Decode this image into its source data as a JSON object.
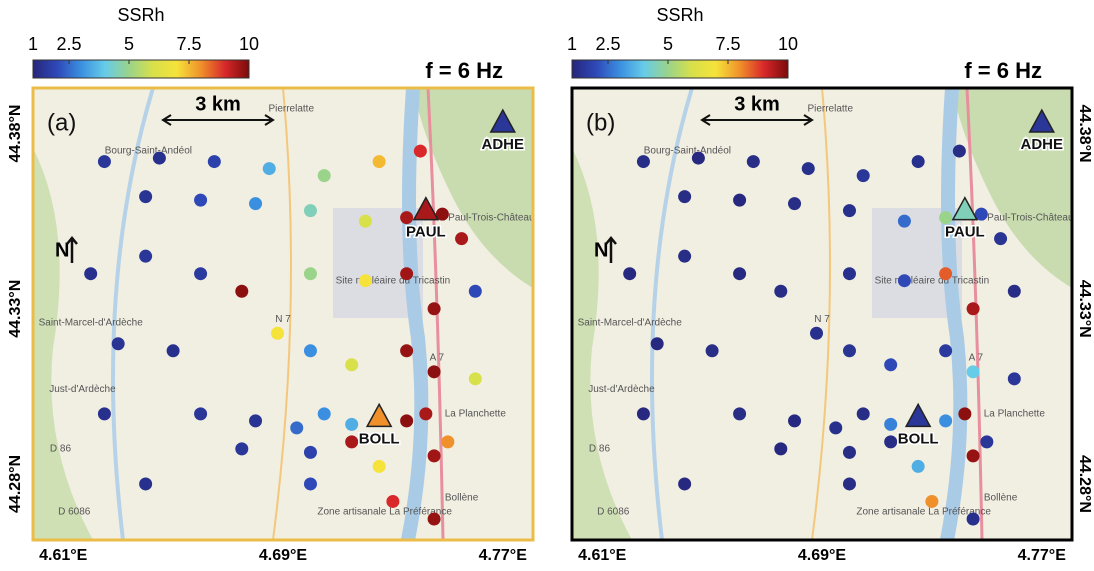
{
  "colorbar": {
    "label": "SSRh",
    "range": [
      1,
      10
    ],
    "ticks": [
      1,
      2.5,
      5,
      7.5,
      10
    ],
    "colormap": [
      "#26267a",
      "#2e48b8",
      "#3b8fe0",
      "#66cce8",
      "#9ad38a",
      "#d8e04a",
      "#f5e23a",
      "#f0902a",
      "#d8282a",
      "#7a0a0a"
    ]
  },
  "xlim": [
    4.599,
    4.781
  ],
  "ylim": [
    44.264,
    44.393
  ],
  "xticks": [
    {
      "value": 4.61,
      "label": "4.61°E"
    },
    {
      "value": 4.69,
      "label": "4.69°E"
    },
    {
      "value": 4.77,
      "label": "4.77°E"
    }
  ],
  "yticks": [
    {
      "value": 44.28,
      "label": "44.28°N"
    },
    {
      "value": 44.33,
      "label": "44.33°N"
    },
    {
      "value": 44.38,
      "label": "44.38°N"
    }
  ],
  "scale_bar": "3 km",
  "north": "N",
  "map_labels": [
    {
      "text": "Pierrelatte",
      "lon": 4.693,
      "lat": 44.387
    },
    {
      "text": "Bourg-Saint-Andéol",
      "lon": 4.641,
      "lat": 44.375
    },
    {
      "text": "Saint-Paul-Trois-Châteaux",
      "lon": 4.762,
      "lat": 44.356
    },
    {
      "text": "Site nucléaire du Tricastin",
      "lon": 4.73,
      "lat": 44.338
    },
    {
      "text": "Saint-Marcel-d'Ardèche",
      "lon": 4.62,
      "lat": 44.326
    },
    {
      "text": "Just-d'Ardèche",
      "lon": 4.617,
      "lat": 44.307
    },
    {
      "text": "La Planchette",
      "lon": 4.76,
      "lat": 44.3
    },
    {
      "text": "Bollène",
      "lon": 4.755,
      "lat": 44.276
    },
    {
      "text": "Zone artisanale La Préférance",
      "lon": 4.727,
      "lat": 44.272
    },
    {
      "text": "D 86",
      "lon": 4.609,
      "lat": 44.29
    },
    {
      "text": "D 6086",
      "lon": 4.614,
      "lat": 44.272
    },
    {
      "text": "N 7",
      "lon": 4.69,
      "lat": 44.327
    },
    {
      "text": "A 7",
      "lon": 4.746,
      "lat": 44.316
    }
  ],
  "points": {
    "lon": [
      4.625,
      4.645,
      4.665,
      4.685,
      4.705,
      4.725,
      4.74,
      4.64,
      4.66,
      4.68,
      4.7,
      4.72,
      4.735,
      4.748,
      4.755,
      4.62,
      4.64,
      4.66,
      4.675,
      4.7,
      4.72,
      4.735,
      4.745,
      4.76,
      4.63,
      4.65,
      4.688,
      4.7,
      4.715,
      4.735,
      4.745,
      4.76,
      4.625,
      4.66,
      4.68,
      4.695,
      4.705,
      4.715,
      4.735,
      4.742,
      4.75,
      4.745,
      4.7,
      4.675,
      4.64,
      4.7,
      4.73,
      4.745,
      4.725,
      4.715
    ],
    "lat": [
      44.372,
      44.373,
      44.372,
      44.37,
      44.368,
      44.372,
      44.375,
      44.362,
      44.361,
      44.36,
      44.358,
      44.355,
      44.356,
      44.357,
      44.35,
      44.34,
      44.345,
      44.34,
      44.335,
      44.34,
      44.338,
      44.34,
      44.33,
      44.335,
      44.32,
      44.318,
      44.323,
      44.318,
      44.314,
      44.318,
      44.312,
      44.31,
      44.3,
      44.3,
      44.298,
      44.296,
      44.3,
      44.297,
      44.298,
      44.3,
      44.292,
      44.288,
      44.289,
      44.29,
      44.28,
      44.28,
      44.275,
      44.27,
      44.285,
      44.292
    ]
  },
  "stations": [
    {
      "name": "ADHE",
      "lon": 4.77,
      "lat": 44.383
    },
    {
      "name": "PAUL",
      "lon": 4.742,
      "lat": 44.358
    },
    {
      "name": "BOLL",
      "lon": 4.725,
      "lat": 44.299
    }
  ],
  "panels": [
    {
      "label": "(a)",
      "frequency": "f = 6 Hz",
      "station_ssrh": [
        1.5,
        9.5,
        8
      ],
      "ssrh": [
        1.5,
        1.3,
        1.8,
        3.5,
        5,
        7.5,
        9,
        1.4,
        2,
        3,
        4.5,
        6,
        9.5,
        9.8,
        9.5,
        1.3,
        1.5,
        1.6,
        9.8,
        5,
        7,
        9.6,
        9.7,
        2,
        1.4,
        1.3,
        7,
        3,
        6,
        9.7,
        9.8,
        6,
        1.3,
        1.5,
        1.4,
        2.5,
        3,
        3.5,
        9.8,
        9.5,
        8,
        9.6,
        1.8,
        1.5,
        1.3,
        2,
        9,
        9.7,
        7,
        9.5
      ]
    },
    {
      "label": "(b)",
      "frequency": "f = 6 Hz",
      "station_ssrh": [
        1.5,
        4.5,
        1.5
      ],
      "ssrh": [
        1.2,
        1.1,
        1.2,
        1.3,
        1.5,
        1.3,
        1.2,
        1.2,
        1.1,
        1.2,
        1.3,
        2.5,
        5,
        2,
        1.4,
        1.1,
        1.2,
        1.1,
        1.2,
        1.3,
        2,
        8.5,
        9.5,
        1.2,
        1.1,
        1.2,
        1.3,
        1.4,
        2,
        1.6,
        4,
        1.5,
        1.1,
        1.2,
        1.1,
        1.3,
        1.2,
        2.8,
        3,
        9.8,
        1.5,
        9.7,
        1.2,
        1.1,
        1.1,
        1.2,
        8,
        1.3,
        3.5,
        1.2
      ]
    }
  ]
}
